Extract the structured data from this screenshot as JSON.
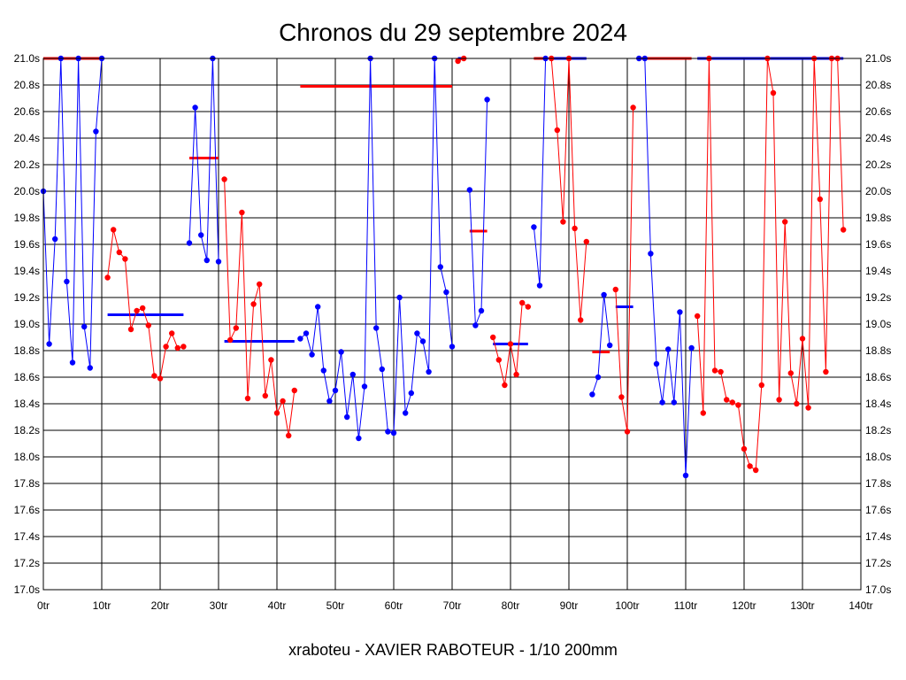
{
  "chart_data": {
    "type": "line",
    "title": "Chronos du 29 septembre 2024",
    "footer": "xraboteu - XAVIER RABOTEUR - 1/10 200mm",
    "xlim": [
      0,
      140
    ],
    "ylim": [
      17.0,
      21.0
    ],
    "grid": true,
    "x_tick_values": [
      0,
      10,
      20,
      30,
      40,
      50,
      60,
      70,
      80,
      90,
      100,
      110,
      120,
      130,
      140
    ],
    "x_tick_labels": [
      "0tr",
      "10tr",
      "20tr",
      "30tr",
      "40tr",
      "50tr",
      "60tr",
      "70tr",
      "80tr",
      "90tr",
      "100tr",
      "110tr",
      "120tr",
      "130tr",
      "140tr"
    ],
    "y_tick_values": [
      17.0,
      17.2,
      17.4,
      17.6,
      17.8,
      18.0,
      18.2,
      18.4,
      18.6,
      18.8,
      19.0,
      19.2,
      19.4,
      19.6,
      19.8,
      20.0,
      20.2,
      20.4,
      20.6,
      20.8,
      21.0
    ],
    "y_tick_labels": [
      "17.0s",
      "17.2s",
      "17.4s",
      "17.6s",
      "17.8s",
      "18.0s",
      "18.2s",
      "18.4s",
      "18.6s",
      "18.8s",
      "19.0s",
      "19.2s",
      "19.4s",
      "19.6s",
      "19.8s",
      "20.0s",
      "20.2s",
      "20.4s",
      "20.6s",
      "20.8s",
      "21.0s"
    ],
    "colors": {
      "blue": "#0000ff",
      "red": "#ff0000"
    },
    "series": [
      {
        "color": "blue",
        "points": [
          [
            0,
            20.0
          ],
          [
            1,
            18.85
          ],
          [
            2,
            19.64
          ],
          [
            3,
            21.0
          ],
          [
            4,
            19.32
          ],
          [
            5,
            18.71
          ],
          [
            6,
            21.0
          ],
          [
            7,
            18.98
          ],
          [
            8,
            18.67
          ],
          [
            9,
            20.45
          ],
          [
            10,
            21.0
          ]
        ]
      },
      {
        "color": "red",
        "points": [
          [
            11,
            19.35
          ],
          [
            12,
            19.71
          ],
          [
            13,
            19.54
          ],
          [
            14,
            19.49
          ],
          [
            15,
            18.96
          ],
          [
            16,
            19.1
          ],
          [
            17,
            19.12
          ],
          [
            18,
            18.99
          ],
          [
            19,
            18.61
          ],
          [
            20,
            18.59
          ],
          [
            21,
            18.83
          ],
          [
            22,
            18.93
          ],
          [
            23,
            18.82
          ],
          [
            24,
            18.83
          ]
        ]
      },
      {
        "color": "blue",
        "points": [
          [
            25,
            19.61
          ],
          [
            26,
            20.63
          ],
          [
            27,
            19.67
          ],
          [
            28,
            19.48
          ],
          [
            29,
            21.0
          ],
          [
            30,
            19.47
          ]
        ]
      },
      {
        "color": "red",
        "points": [
          [
            31,
            20.09
          ],
          [
            32,
            18.88
          ],
          [
            33,
            18.97
          ],
          [
            34,
            19.84
          ],
          [
            35,
            18.44
          ],
          [
            36,
            19.15
          ],
          [
            37,
            19.3
          ],
          [
            38,
            18.46
          ],
          [
            39,
            18.73
          ],
          [
            40,
            18.33
          ],
          [
            41,
            18.42
          ],
          [
            42,
            18.16
          ],
          [
            43,
            18.5
          ]
        ]
      },
      {
        "color": "blue",
        "points": [
          [
            44,
            18.89
          ],
          [
            45,
            18.93
          ],
          [
            46,
            18.77
          ],
          [
            47,
            19.13
          ],
          [
            48,
            18.65
          ],
          [
            49,
            18.42
          ],
          [
            50,
            18.5
          ],
          [
            51,
            18.79
          ],
          [
            52,
            18.3
          ],
          [
            53,
            18.62
          ],
          [
            54,
            18.14
          ],
          [
            55,
            18.53
          ],
          [
            56,
            21.0
          ],
          [
            57,
            18.97
          ],
          [
            58,
            18.66
          ],
          [
            59,
            18.19
          ],
          [
            60,
            18.18
          ],
          [
            61,
            19.2
          ],
          [
            62,
            18.33
          ],
          [
            63,
            18.48
          ],
          [
            64,
            18.93
          ],
          [
            65,
            18.87
          ],
          [
            66,
            18.64
          ],
          [
            67,
            21.0
          ],
          [
            68,
            19.43
          ],
          [
            69,
            19.24
          ],
          [
            70,
            18.83
          ]
        ]
      },
      {
        "color": "red",
        "points": [
          [
            71,
            20.98
          ],
          [
            72,
            21.0
          ]
        ]
      },
      {
        "color": "blue",
        "points": [
          [
            73,
            20.01
          ],
          [
            74,
            18.99
          ],
          [
            75,
            19.1
          ],
          [
            76,
            20.69
          ]
        ]
      },
      {
        "color": "red",
        "points": [
          [
            77,
            18.9
          ],
          [
            78,
            18.73
          ],
          [
            79,
            18.54
          ],
          [
            80,
            18.85
          ],
          [
            81,
            18.62
          ],
          [
            82,
            19.16
          ],
          [
            83,
            19.13
          ]
        ]
      },
      {
        "color": "blue",
        "points": [
          [
            84,
            19.73
          ],
          [
            85,
            19.29
          ],
          [
            86,
            21.0
          ]
        ]
      },
      {
        "color": "red",
        "points": [
          [
            87,
            21.0
          ],
          [
            88,
            20.46
          ],
          [
            89,
            19.77
          ],
          [
            90,
            21.0
          ],
          [
            91,
            19.72
          ],
          [
            92,
            19.03
          ],
          [
            93,
            19.62
          ]
        ]
      },
      {
        "color": "blue",
        "points": [
          [
            94,
            18.47
          ],
          [
            95,
            18.6
          ],
          [
            96,
            19.22
          ],
          [
            97,
            18.84
          ]
        ]
      },
      {
        "color": "red",
        "points": [
          [
            98,
            19.26
          ],
          [
            99,
            18.45
          ],
          [
            100,
            18.19
          ],
          [
            101,
            20.63
          ]
        ]
      },
      {
        "color": "blue",
        "points": [
          [
            102,
            21.0
          ],
          [
            103,
            21.0
          ],
          [
            104,
            19.53
          ],
          [
            105,
            18.7
          ],
          [
            106,
            18.41
          ],
          [
            107,
            18.81
          ],
          [
            108,
            18.41
          ],
          [
            109,
            19.09
          ],
          [
            110,
            17.86
          ],
          [
            111,
            18.82
          ]
        ]
      },
      {
        "color": "red",
        "points": [
          [
            112,
            19.06
          ],
          [
            113,
            18.33
          ],
          [
            114,
            21.0
          ],
          [
            115,
            18.65
          ],
          [
            116,
            18.64
          ],
          [
            117,
            18.43
          ],
          [
            118,
            18.41
          ],
          [
            119,
            18.39
          ],
          [
            120,
            18.06
          ],
          [
            121,
            17.93
          ],
          [
            122,
            17.9
          ],
          [
            123,
            18.54
          ],
          [
            124,
            21.0
          ],
          [
            125,
            20.74
          ],
          [
            126,
            18.43
          ],
          [
            127,
            19.77
          ],
          [
            128,
            18.63
          ],
          [
            129,
            18.4
          ],
          [
            130,
            18.89
          ],
          [
            131,
            18.37
          ],
          [
            132,
            21.0
          ],
          [
            133,
            19.94
          ],
          [
            134,
            18.64
          ],
          [
            135,
            21.0
          ],
          [
            136,
            21.0
          ],
          [
            137,
            19.71
          ]
        ]
      }
    ],
    "averages": [
      {
        "color": "red",
        "from": 0,
        "to": 10,
        "value": 21.0
      },
      {
        "color": "blue",
        "from": 11,
        "to": 24,
        "value": 19.07
      },
      {
        "color": "red",
        "from": 25,
        "to": 30,
        "value": 20.25
      },
      {
        "color": "blue",
        "from": 31,
        "to": 43,
        "value": 18.87
      },
      {
        "color": "red",
        "from": 44,
        "to": 70,
        "value": 20.79
      },
      {
        "color": "blue",
        "from": 71,
        "to": 72,
        "value": 21.0
      },
      {
        "color": "red",
        "from": 73,
        "to": 76,
        "value": 19.7
      },
      {
        "color": "blue",
        "from": 77,
        "to": 83,
        "value": 18.85
      },
      {
        "color": "red",
        "from": 84,
        "to": 86,
        "value": 21.0
      },
      {
        "color": "blue",
        "from": 87,
        "to": 93,
        "value": 21.0
      },
      {
        "color": "red",
        "from": 94,
        "to": 97,
        "value": 18.79
      },
      {
        "color": "blue",
        "from": 98,
        "to": 101,
        "value": 19.13
      },
      {
        "color": "red",
        "from": 102,
        "to": 111,
        "value": 21.0
      },
      {
        "color": "blue",
        "from": 112,
        "to": 137,
        "value": 21.0
      }
    ]
  }
}
